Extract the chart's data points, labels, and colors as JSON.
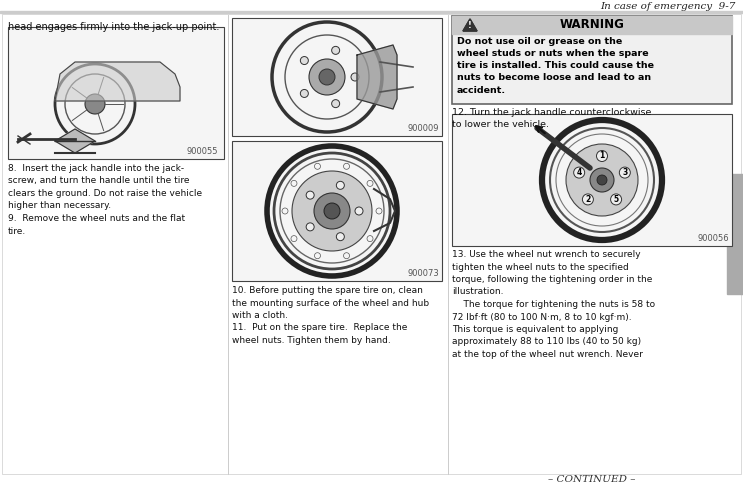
{
  "page_header_text": "In case of emergency  9-7",
  "bg_color": "#ffffff",
  "header_line_color": "#cccccc",
  "col1_header_text": "head engages firmly into the jack-up point.",
  "img1_label": "900055",
  "text_col1_body": "8.  Insert the jack handle into the jack-\nscrew, and turn the handle until the tire\nclears the ground. Do not raise the vehicle\nhigher than necessary.\n9.  Remove the wheel nuts and the flat\ntire.",
  "img2_label": "900009",
  "img3_label": "900073",
  "text_col2_body": "10. Before putting the spare tire on, clean\nthe mounting surface of the wheel and hub\nwith a cloth.\n11.  Put on the spare tire.  Replace the\nwheel nuts. Tighten them by hand.",
  "warning_title": "WARNING",
  "warning_body_bold": "Do not use oil or grease on the\nwheel studs or nuts when the spare\ntire is installed. This could cause the\nnuts to become loose and lead to an\naccident.",
  "step12_text": "12. Turn the jack handle counterclockwise\nto lower the vehicle.",
  "img4_label": "900056",
  "text_col3_body": "13. Use the wheel nut wrench to securely\ntighten the wheel nuts to the specified\ntorque, following the tightening order in the\nillustration.\n    The torque for tightening the nuts is 58 to\n72 lbf·ft (80 to 100 N·m, 8 to 10 kgf·m).\nThis torque is equivalent to applying\napproximately 88 to 110 lbs (40 to 50 kg)\nat the top of the wheel nut wrench. Never",
  "footer_text": "– CONTINUED –",
  "warning_bg": "#e8e8e8",
  "warning_border": "#888888",
  "sidebar_color": "#aaaaaa"
}
